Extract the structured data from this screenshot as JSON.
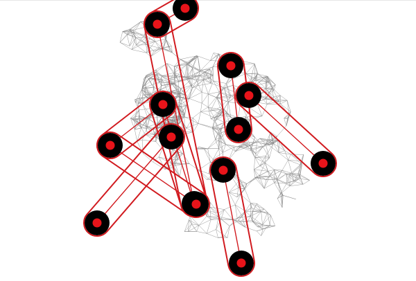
{
  "colors": {
    "background": "#ffffff",
    "mesh": "#8a8a8a",
    "node_outer": "#000000",
    "node_inner": "#e8141a",
    "link": "#d11a1f",
    "selected_fill": "#f2f2f2"
  },
  "nodes": [
    {
      "id": "n1",
      "selected": false
    },
    {
      "id": "n2",
      "selected": false
    },
    {
      "id": "n3",
      "selected": false
    },
    {
      "id": "n4",
      "selected": false
    },
    {
      "id": "n5",
      "selected": false
    },
    {
      "id": "n6",
      "selected": false
    },
    {
      "id": "n7",
      "selected": false
    },
    {
      "id": "n8",
      "selected": false
    },
    {
      "id": "n9",
      "selected": false
    },
    {
      "id": "n10",
      "selected": false
    },
    {
      "id": "n11",
      "selected": false
    },
    {
      "id": "n12",
      "selected": false
    },
    {
      "id": "n13",
      "selected": false
    },
    {
      "id": "n14",
      "selected": false
    }
  ],
  "links": [
    {
      "from": "n1",
      "to": "n2"
    },
    {
      "from": "n3",
      "to": "n8"
    },
    {
      "from": "n2",
      "to": "n9"
    },
    {
      "from": "n4",
      "to": "n10"
    },
    {
      "from": "n5",
      "to": "n6"
    },
    {
      "from": "n6",
      "to": "n13"
    },
    {
      "from": "n7",
      "to": "n12"
    },
    {
      "from": "n11",
      "to": "n14"
    },
    {
      "from": "n5",
      "to": "n9"
    }
  ]
}
